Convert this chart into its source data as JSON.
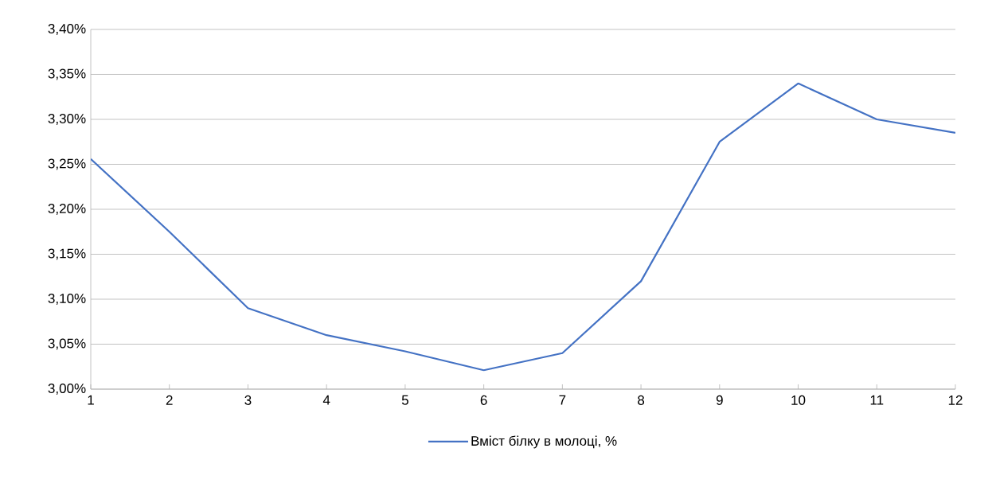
{
  "chart_data": {
    "type": "line",
    "categories": [
      "1",
      "2",
      "3",
      "4",
      "5",
      "6",
      "7",
      "8",
      "9",
      "10",
      "11",
      "12"
    ],
    "series": [
      {
        "name": "Вміст білку в молоці, %",
        "color": "#4472c4",
        "values": [
          3.256,
          3.175,
          3.09,
          3.06,
          3.042,
          3.021,
          3.04,
          3.12,
          3.275,
          3.34,
          3.3,
          3.285
        ]
      }
    ],
    "ylim": [
      3.0,
      3.4
    ],
    "yticks": [
      {
        "value": 3.0,
        "label": "3,00%"
      },
      {
        "value": 3.05,
        "label": "3,05%"
      },
      {
        "value": 3.1,
        "label": "3,10%"
      },
      {
        "value": 3.15,
        "label": "3,15%"
      },
      {
        "value": 3.2,
        "label": "3,20%"
      },
      {
        "value": 3.25,
        "label": "3,25%"
      },
      {
        "value": 3.3,
        "label": "3,30%"
      },
      {
        "value": 3.35,
        "label": "3,35%"
      },
      {
        "value": 3.4,
        "label": "3,40%"
      }
    ],
    "grid": "y",
    "legend": "bottom",
    "marker": "none",
    "line_style": "solid"
  }
}
